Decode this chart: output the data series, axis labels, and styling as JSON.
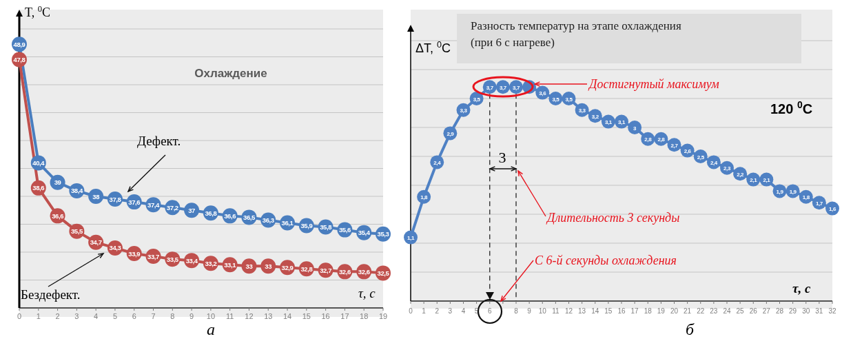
{
  "chart_data": [
    {
      "type": "line",
      "title": "Охлаждение",
      "xlabel": "τ, с",
      "ylabel": "T, $^{0}$C",
      "x": [
        0,
        1,
        2,
        3,
        4,
        5,
        6,
        7,
        8,
        9,
        10,
        11,
        12,
        13,
        14,
        15,
        16,
        17,
        18,
        19
      ],
      "xlim": [
        0,
        19
      ],
      "xticks": [
        0,
        1,
        2,
        3,
        4,
        5,
        6,
        7,
        8,
        9,
        10,
        11,
        12,
        13,
        14,
        15,
        16,
        17,
        18,
        19
      ],
      "ylim": [
        30,
        50
      ],
      "yticks": [
        {
          "value": 32,
          "label": null
        },
        {
          "value": 34,
          "label": null
        },
        {
          "value": 36,
          "label": null
        },
        {
          "value": 38,
          "label": null
        },
        {
          "value": 40,
          "label": null
        },
        {
          "value": 42,
          "label": null
        },
        {
          "value": 44,
          "label": null
        },
        {
          "value": 46,
          "label": null
        },
        {
          "value": 48,
          "label": null
        },
        {
          "value": 50,
          "label": null
        }
      ],
      "tick_labels": "x",
      "grid": "y",
      "marker": "circle",
      "line_style": "solid",
      "series": [
        {
          "color": "#4a7ebf",
          "values": [
            48.9,
            40.4,
            39,
            38.4,
            38,
            37.8,
            37.6,
            37.4,
            37.2,
            37,
            36.8,
            36.6,
            36.5,
            36.3,
            36.1,
            35.9,
            35.8,
            35.6,
            35.4,
            35.3
          ],
          "value_labels": [
            "48,9",
            "40,4",
            "39",
            "38,4",
            "38",
            "37,8",
            "37,6",
            "37,4",
            "37,2",
            "37",
            "36,8",
            "36,6",
            "36,5",
            "36,3",
            "36,1",
            "35,9",
            "35,8",
            "35,6",
            "35,4",
            "35,3"
          ]
        },
        {
          "color": "#c0504d",
          "values": [
            47.8,
            38.6,
            36.6,
            35.5,
            34.7,
            34.3,
            33.9,
            33.7,
            33.5,
            33.4,
            33.2,
            33.1,
            33,
            33,
            32.9,
            32.8,
            32.7,
            32.6,
            32.6,
            32.5
          ],
          "value_labels": [
            "47,8",
            "38,6",
            "36,6",
            "35,5",
            "34,7",
            "34,3",
            "33,9",
            "33,7",
            "33,5",
            "33,4",
            "33,2",
            "33,1",
            "33",
            "33",
            "32,9",
            "32,8",
            "32,7",
            "32,6",
            "32,6",
            "32,5"
          ]
        }
      ],
      "annotations": [
        "Дефект.",
        "Бездефект.",
        "а"
      ]
    },
    {
      "type": "line",
      "title": "Разность температур на этапе охлаждения (при 6 с нагреве)",
      "xlabel": "τ, c",
      "ylabel": "ΔT, $^{0}$C",
      "x": [
        0,
        1,
        2,
        3,
        4,
        5,
        6,
        7,
        8,
        9,
        10,
        11,
        12,
        13,
        14,
        15,
        16,
        17,
        18,
        19,
        20,
        21,
        22,
        23,
        24,
        25,
        26,
        27,
        28,
        29,
        30,
        31,
        32
      ],
      "xlim": [
        0,
        32
      ],
      "xticks": [
        0,
        1,
        2,
        3,
        4,
        5,
        6,
        {
          "value": 7,
          "label": null
        },
        8,
        9,
        10,
        11,
        12,
        13,
        14,
        15,
        16,
        17,
        18,
        19,
        20,
        21,
        22,
        23,
        24,
        25,
        26,
        27,
        28,
        29,
        30,
        31,
        32
      ],
      "ylim": [
        0,
        4.5
      ],
      "yticks": [
        {
          "value": 0.5,
          "label": null
        },
        {
          "value": 1,
          "label": null
        },
        {
          "value": 1.5,
          "label": null
        },
        {
          "value": 2,
          "label": null
        },
        {
          "value": 2.5,
          "label": null
        },
        {
          "value": 3,
          "label": null
        },
        {
          "value": 3.5,
          "label": null
        },
        {
          "value": 4,
          "label": null
        },
        {
          "value": 4.5,
          "label": null
        }
      ],
      "tick_labels": "x",
      "grid": "y",
      "marker": "circle",
      "line_style": "solid",
      "series": [
        {
          "color": "#4f81c4",
          "values": [
            1.1,
            1.8,
            2.4,
            2.9,
            3.3,
            3.5,
            3.7,
            3.7,
            3.7,
            3.7,
            3.6,
            3.5,
            3.5,
            3.3,
            3.2,
            3.1,
            3.1,
            3,
            2.8,
            2.8,
            2.7,
            2.6,
            2.5,
            2.4,
            2.3,
            2.2,
            2.1,
            2.1,
            1.9,
            1.9,
            1.8,
            1.7,
            1.6
          ],
          "value_labels": [
            "1,1",
            "1,8",
            "2,4",
            "2,9",
            "3,3",
            "3,5",
            "3,7",
            "3,7",
            "3,7",
            null,
            "3,6",
            "3,5",
            "3,5",
            "3,3",
            "3,2",
            "3,1",
            "3,1",
            "3",
            "2,8",
            "2,8",
            "2,7",
            "2,6",
            "2,5",
            "2,4",
            "2,3",
            "2,2",
            "2,1",
            "2,1",
            "1,9",
            "1,9",
            "1,8",
            "1,7",
            "1,6"
          ]
        }
      ],
      "ref_lines": [
        {
          "axis": "x",
          "value": 6,
          "color": "#333333",
          "line_style": "dashed"
        },
        {
          "axis": "x",
          "value": 8,
          "color": "#333333",
          "line_style": "dashed"
        }
      ],
      "annotations": [
        "Достигнутый максимум",
        "3",
        "Длительность 3 секунды",
        "С 6-й секунды охлаждения",
        "120 $^{0}$C",
        "б"
      ]
    }
  ]
}
